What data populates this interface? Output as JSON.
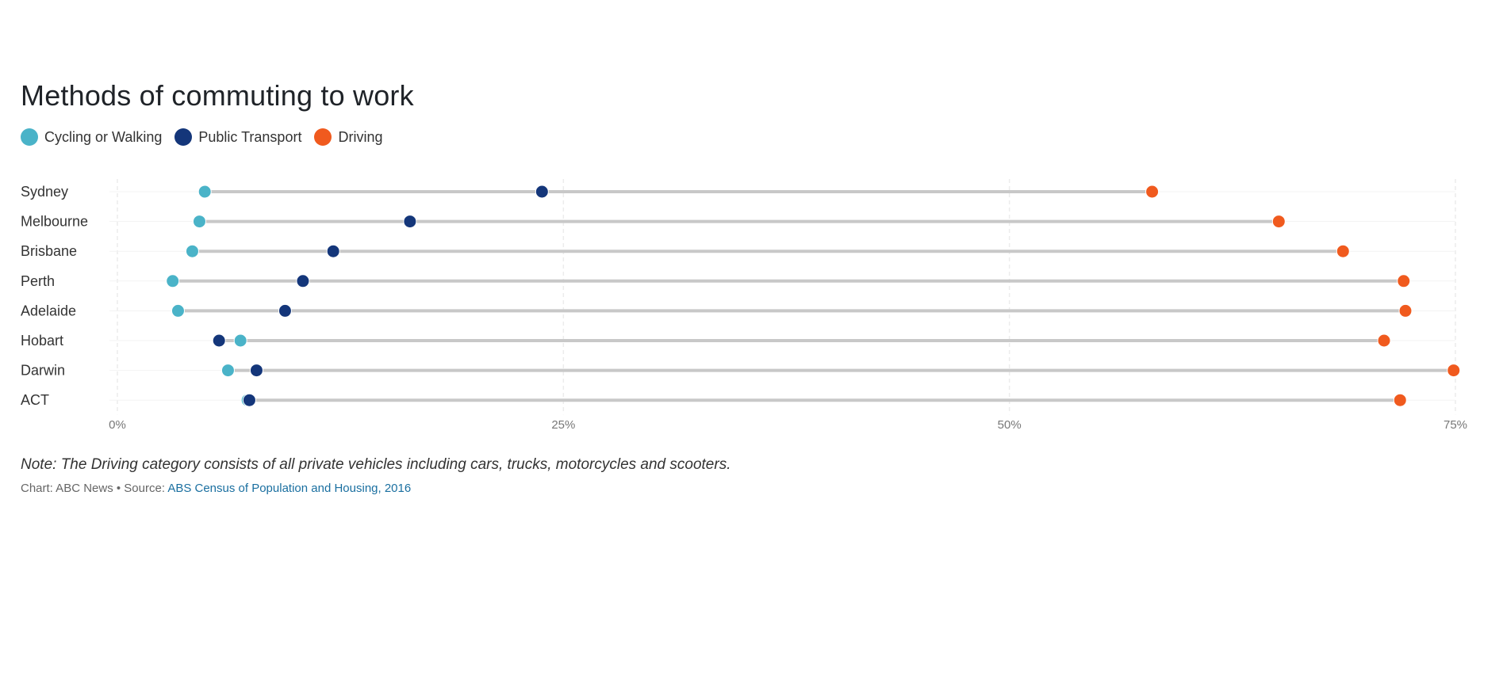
{
  "chart_data": {
    "type": "dot-range",
    "title": "Methods of commuting to work",
    "categories": [
      "Sydney",
      "Melbourne",
      "Brisbane",
      "Perth",
      "Adelaide",
      "Hobart",
      "Darwin",
      "ACT"
    ],
    "series": [
      {
        "name": "Cycling or Walking",
        "color": "#4ab3c8",
        "values": [
          4.9,
          4.6,
          4.2,
          3.1,
          3.4,
          6.9,
          6.2,
          7.3
        ]
      },
      {
        "name": "Public Transport",
        "color": "#14367a",
        "values": [
          23.8,
          16.4,
          12.1,
          10.4,
          9.4,
          5.7,
          7.8,
          7.4
        ]
      },
      {
        "name": "Driving",
        "color": "#f05a1e",
        "values": [
          58.0,
          65.1,
          68.7,
          72.1,
          72.2,
          71.0,
          74.9,
          71.9
        ]
      }
    ],
    "xaxis": {
      "ticks": [
        0,
        25,
        50,
        75
      ],
      "tick_labels": [
        "0%",
        "25%",
        "50%",
        "75%"
      ],
      "xlim": [
        0,
        75
      ]
    },
    "grid": true,
    "legend_position": "top-left"
  },
  "note": "Note: The Driving category consists of all private vehicles including cars, trucks, motorcycles and scooters.",
  "credit": {
    "prefix": "Chart: ABC News • Source: ",
    "source_link": "ABS Census of Population and Housing, 2016"
  }
}
